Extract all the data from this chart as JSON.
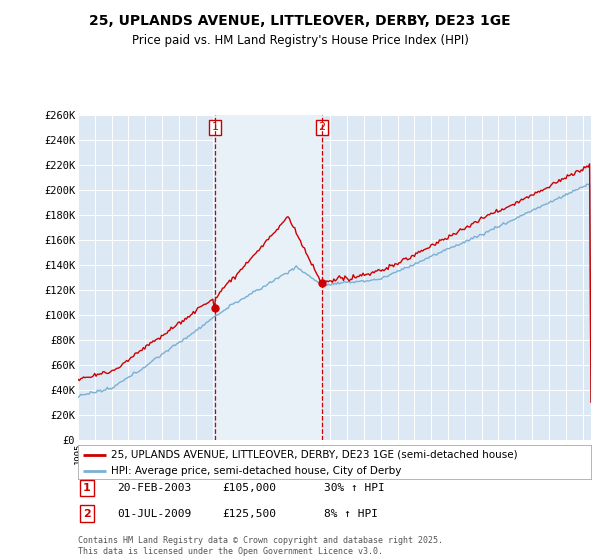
{
  "title": "25, UPLANDS AVENUE, LITTLEOVER, DERBY, DE23 1GE",
  "subtitle": "Price paid vs. HM Land Registry's House Price Index (HPI)",
  "ylim": [
    0,
    260000
  ],
  "yticks": [
    0,
    20000,
    40000,
    60000,
    80000,
    100000,
    120000,
    140000,
    160000,
    180000,
    200000,
    220000,
    240000,
    260000
  ],
  "background_color": "#ffffff",
  "plot_bg_color": "#dce9f5",
  "span_bg_color": "#dce9f5",
  "grid_color": "#ffffff",
  "legend1_label": "25, UPLANDS AVENUE, LITTLEOVER, DERBY, DE23 1GE (semi-detached house)",
  "legend2_label": "HPI: Average price, semi-detached house, City of Derby",
  "sale1_date": "20-FEB-2003",
  "sale1_price": "£105,000",
  "sale1_hpi": "30% ↑ HPI",
  "sale2_date": "01-JUL-2009",
  "sale2_price": "£125,500",
  "sale2_hpi": "8% ↑ HPI",
  "footer": "Contains HM Land Registry data © Crown copyright and database right 2025.\nThis data is licensed under the Open Government Licence v3.0.",
  "line1_color": "#cc0000",
  "line2_color": "#7bafd4",
  "vline_color": "#cc0000",
  "dot_color": "#cc0000"
}
